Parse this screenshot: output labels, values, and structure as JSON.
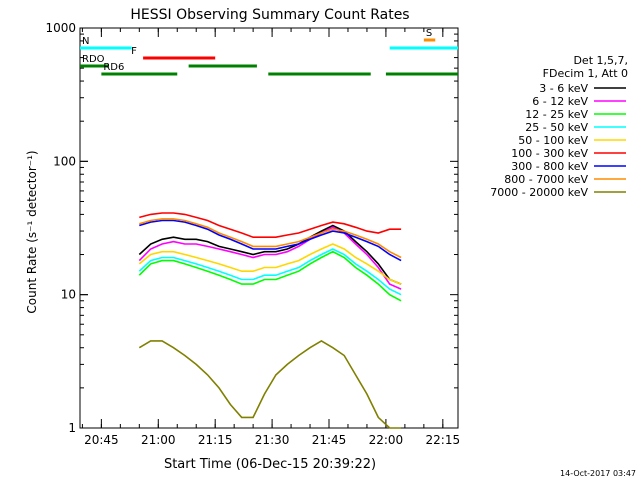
{
  "chart_data": {
    "type": "line",
    "title": "HESSI Observing Summary Count Rates",
    "xlabel": "Start Time (06-Dec-15 20:39:22)",
    "ylabel": "Count Rate (s⁻¹ detector⁻¹)",
    "y_scale": "log",
    "ylim": [
      1,
      1000
    ],
    "xlim": [
      "20:39:22",
      "22:19:00"
    ],
    "grid": false,
    "legend_position": "right",
    "x_ticks": [
      "20:45",
      "21:00",
      "21:15",
      "21:30",
      "21:45",
      "22:00",
      "22:15"
    ],
    "y_ticks": [
      "1",
      "10",
      "100",
      "1000"
    ],
    "legend_header": [
      "Det 1,5,7,",
      "FDecim 1, Att 0"
    ],
    "footer": "14-Oct-2017 03:47",
    "x": [
      "20:39:22",
      "20:49",
      "20:52",
      "20:55",
      "20:58",
      "21:01",
      "21:04",
      "21:07",
      "21:10",
      "21:13",
      "21:16",
      "21:19",
      "21:22",
      "21:25",
      "21:28",
      "21:31",
      "21:34",
      "21:37",
      "21:40",
      "21:43",
      "21:46",
      "21:49",
      "21:52",
      "21:55",
      "21:58",
      "22:01",
      "22:04"
    ],
    "series": [
      {
        "name": "3 - 6 keV",
        "color": "#000000",
        "values": [
          null,
          null,
          null,
          20,
          24,
          26,
          27,
          26,
          26,
          25,
          23,
          22,
          21,
          20,
          21,
          21,
          22,
          24,
          27,
          30,
          33,
          30,
          25,
          21,
          17,
          13,
          12
        ]
      },
      {
        "name": "6 - 12 keV",
        "color": "#ff00ff",
        "values": [
          null,
          null,
          null,
          18,
          22,
          24,
          25,
          24,
          24,
          23,
          22,
          21,
          20,
          19,
          20,
          20,
          21,
          23,
          26,
          29,
          32,
          29,
          24,
          20,
          16,
          12,
          11
        ]
      },
      {
        "name": "12 - 25 keV",
        "color": "#00ff00",
        "values": [
          null,
          null,
          null,
          14,
          17,
          18,
          18,
          17,
          16,
          15,
          14,
          13,
          12,
          12,
          13,
          13,
          14,
          15,
          17,
          19,
          21,
          19,
          16,
          14,
          12,
          10,
          9
        ]
      },
      {
        "name": "25 - 50 keV",
        "color": "#00ffff",
        "values": [
          null,
          null,
          null,
          15,
          18,
          19,
          19,
          18,
          17,
          16,
          15,
          14,
          13,
          13,
          14,
          14,
          15,
          16,
          18,
          20,
          22,
          20,
          17,
          15,
          13,
          11,
          10
        ]
      },
      {
        "name": "50 - 100 keV",
        "color": "#ffd700",
        "values": [
          null,
          null,
          null,
          17,
          20,
          21,
          21,
          20,
          19,
          18,
          17,
          16,
          15,
          15,
          16,
          16,
          17,
          18,
          20,
          22,
          24,
          22,
          19,
          17,
          15,
          13,
          12
        ]
      },
      {
        "name": "100 - 300 keV",
        "color": "#ff0000",
        "values": [
          null,
          null,
          null,
          38,
          40,
          41,
          41,
          40,
          38,
          36,
          33,
          31,
          29,
          27,
          27,
          27,
          28,
          29,
          31,
          33,
          35,
          34,
          32,
          30,
          29,
          31,
          31
        ]
      },
      {
        "name": "300 - 800 keV",
        "color": "#0000ff",
        "values": [
          null,
          null,
          null,
          33,
          35,
          36,
          36,
          35,
          33,
          31,
          28,
          26,
          24,
          22,
          22,
          22,
          23,
          24,
          26,
          28,
          30,
          29,
          27,
          25,
          23,
          20,
          18
        ]
      },
      {
        "name": "800 - 7000 keV",
        "color": "#ff8c00",
        "values": [
          null,
          null,
          null,
          34,
          36,
          37,
          37,
          36,
          34,
          32,
          29,
          27,
          25,
          23,
          23,
          23,
          24,
          25,
          27,
          29,
          31,
          30,
          28,
          26,
          24,
          21,
          19
        ]
      },
      {
        "name": "7000 - 20000 keV",
        "color": "#808000",
        "values": [
          null,
          null,
          null,
          4,
          4.5,
          4.5,
          4,
          3.5,
          3,
          2.5,
          2,
          1.5,
          1.2,
          1.2,
          1.8,
          2.5,
          3,
          3.5,
          4,
          4.5,
          4,
          3.5,
          2.5,
          1.8,
          1.2,
          1,
          1
        ]
      }
    ],
    "flags": [
      {
        "label": "N",
        "color": "#00ffff",
        "segments": [
          [
            "20:39:22",
            "20:53"
          ],
          [
            "22:01",
            "22:19"
          ]
        ]
      },
      {
        "label": "F",
        "color": "#ff0000",
        "segments": [
          [
            "20:56",
            "21:15"
          ]
        ]
      },
      {
        "label": "RDO",
        "color": "#008000",
        "segments": [
          [
            "20:39:22",
            "20:47"
          ],
          [
            "21:08",
            "21:26"
          ]
        ]
      },
      {
        "label": "RD6",
        "color": "#008000",
        "segments": [
          [
            "20:45",
            "21:05"
          ],
          [
            "21:29",
            "21:56"
          ],
          [
            "22:00",
            "22:19"
          ]
        ]
      },
      {
        "label": "S",
        "color": "#ff8c00",
        "segments": [
          [
            "22:10",
            "22:13"
          ]
        ]
      }
    ]
  }
}
